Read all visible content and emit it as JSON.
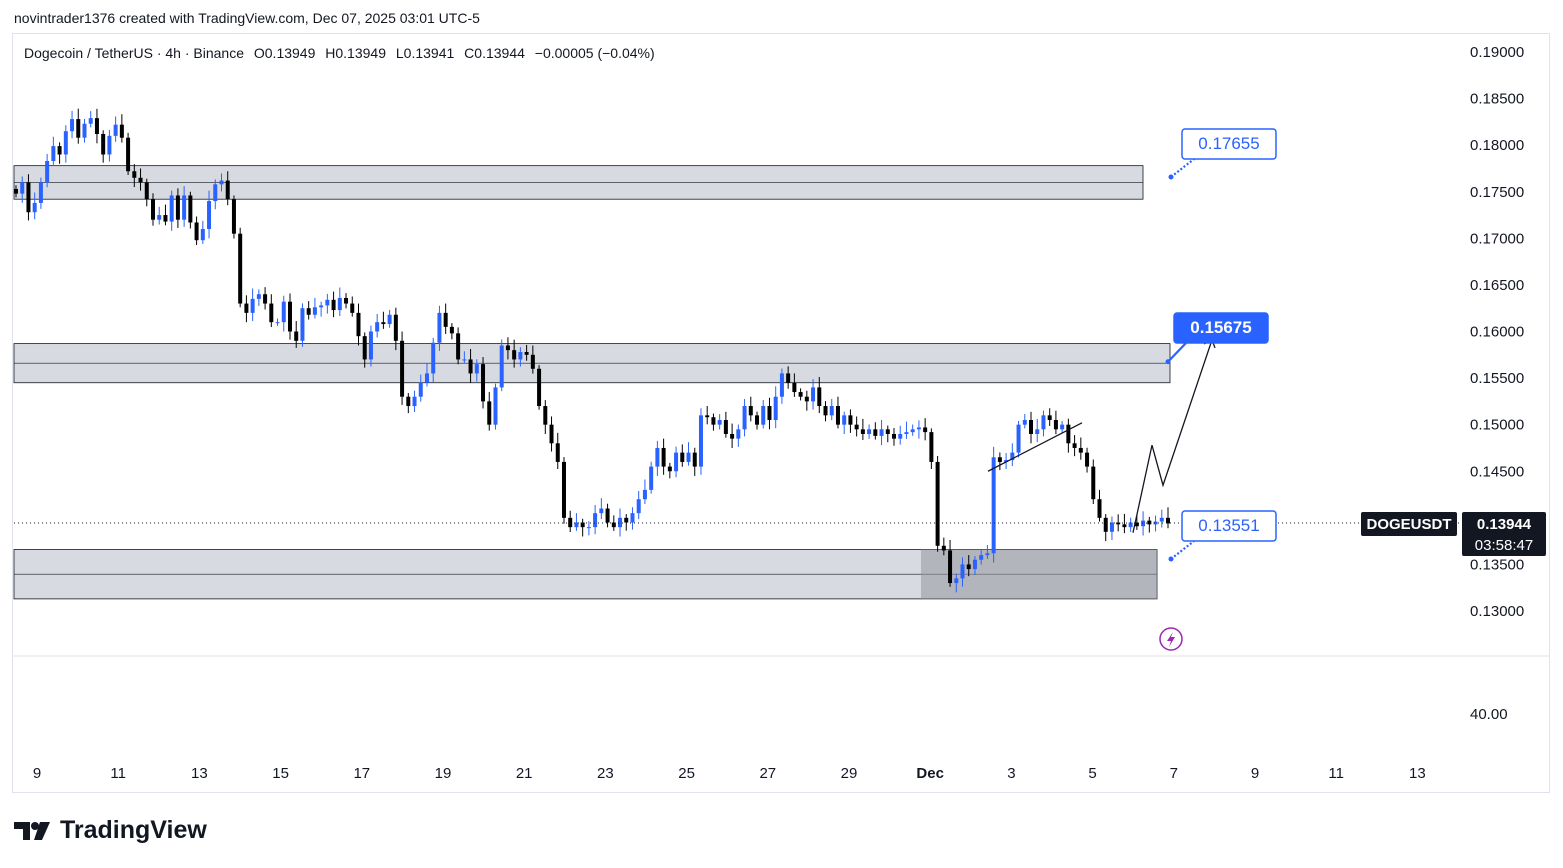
{
  "header": {
    "text": "novintrader1376 created with TradingView.com, Dec 07, 2025 03:01 UTC-5"
  },
  "legend": {
    "symbol": "Dogecoin / TetherUS · 4h · Binance",
    "open": "O0.13949",
    "high": "H0.13949",
    "low": "L0.13941",
    "close": "C0.13944",
    "change": "−0.00005 (−0.04%)"
  },
  "price_tag": {
    "symbol": "DOGEUSDT",
    "price": "0.13944",
    "countdown": "03:58:47"
  },
  "brand": {
    "name": "TradingView"
  },
  "colors": {
    "up": "#2962ff",
    "down": "#000000",
    "zone_fill": "#d1d4dc",
    "callout_border": "#2962ff",
    "callout_fill": "#2962ff"
  },
  "chart_data": {
    "type": "candlestick",
    "y_ticks": [
      "0.19000",
      "0.18500",
      "0.18000",
      "0.17500",
      "0.17000",
      "0.16500",
      "0.16000",
      "0.15500",
      "0.15000",
      "0.14500",
      "0.13500",
      "0.13000"
    ],
    "indicator_tick": "40.00",
    "x_ticks": [
      "9",
      "11",
      "13",
      "15",
      "17",
      "19",
      "21",
      "23",
      "25",
      "27",
      "29",
      "Dec",
      "3",
      "5",
      "7",
      "9",
      "11",
      "13"
    ],
    "ylim": [
      0.128,
      0.193
    ],
    "zones": [
      {
        "low": 0.1742,
        "high": 0.1778
      },
      {
        "low": 0.1545,
        "high": 0.1587
      },
      {
        "low": 0.1313,
        "high": 0.1366
      }
    ],
    "callouts": [
      {
        "label": "0.17655",
        "value": 0.17655,
        "style": "outline"
      },
      {
        "label": "0.15675",
        "value": 0.15675,
        "style": "filled"
      },
      {
        "label": "0.13551",
        "value": 0.13551,
        "style": "outline"
      }
    ],
    "path_projection": [
      0.1384,
      0.1478,
      0.1435,
      0.1591
    ],
    "trendline": [
      0.145,
      0.1502
    ],
    "closes": [
      0.1748,
      0.176,
      0.1728,
      0.1738,
      0.176,
      0.1783,
      0.1799,
      0.179,
      0.1815,
      0.1828,
      0.1808,
      0.1823,
      0.1829,
      0.1812,
      0.179,
      0.181,
      0.1822,
      0.1808,
      0.1772,
      0.1765,
      0.176,
      0.1742,
      0.172,
      0.1725,
      0.1718,
      0.1746,
      0.172,
      0.1746,
      0.1717,
      0.1698,
      0.171,
      0.174,
      0.1758,
      0.1762,
      0.1742,
      0.1705,
      0.163,
      0.162,
      0.1635,
      0.164,
      0.163,
      0.161,
      0.161,
      0.1632,
      0.16,
      0.159,
      0.1625,
      0.1618,
      0.1626,
      0.1628,
      0.1634,
      0.1623,
      0.1636,
      0.163,
      0.162,
      0.1595,
      0.157,
      0.16,
      0.161,
      0.1608,
      0.1618,
      0.159,
      0.153,
      0.152,
      0.153,
      0.1545,
      0.1555,
      0.1588,
      0.162,
      0.1605,
      0.1598,
      0.157,
      0.157,
      0.1555,
      0.1565,
      0.1525,
      0.15,
      0.154,
      0.1585,
      0.158,
      0.157,
      0.1578,
      0.1575,
      0.156,
      0.152,
      0.15,
      0.148,
      0.146,
      0.14,
      0.139,
      0.1395,
      0.139,
      0.139,
      0.1405,
      0.141,
      0.1395,
      0.139,
      0.14,
      0.1395,
      0.1405,
      0.142,
      0.143,
      0.1455,
      0.1475,
      0.1455,
      0.145,
      0.147,
      0.146,
      0.147,
      0.1455,
      0.151,
      0.1508,
      0.15,
      0.1505,
      0.149,
      0.1485,
      0.1495,
      0.152,
      0.151,
      0.15,
      0.152,
      0.1505,
      0.153,
      0.1555,
      0.1545,
      0.1535,
      0.153,
      0.1525,
      0.154,
      0.152,
      0.151,
      0.152,
      0.15,
      0.151,
      0.15,
      0.1495,
      0.149,
      0.1495,
      0.1488,
      0.1495,
      0.149,
      0.1485,
      0.149,
      0.1492,
      0.1495,
      0.1497,
      0.1492,
      0.146,
      0.137,
      0.1365,
      0.133,
      0.1335,
      0.135,
      0.1345,
      0.1355,
      0.136,
      0.1362,
      0.1465,
      0.146,
      0.1462,
      0.147,
      0.15,
      0.1505,
      0.149,
      0.1495,
      0.151,
      0.1505,
      0.1495,
      0.15,
      0.148,
      0.1475,
      0.147,
      0.1455,
      0.142,
      0.14,
      0.1385,
      0.1395,
      0.1393,
      0.139,
      0.1395,
      0.1391,
      0.1397,
      0.1393,
      0.1396,
      0.14,
      0.1394
    ]
  }
}
